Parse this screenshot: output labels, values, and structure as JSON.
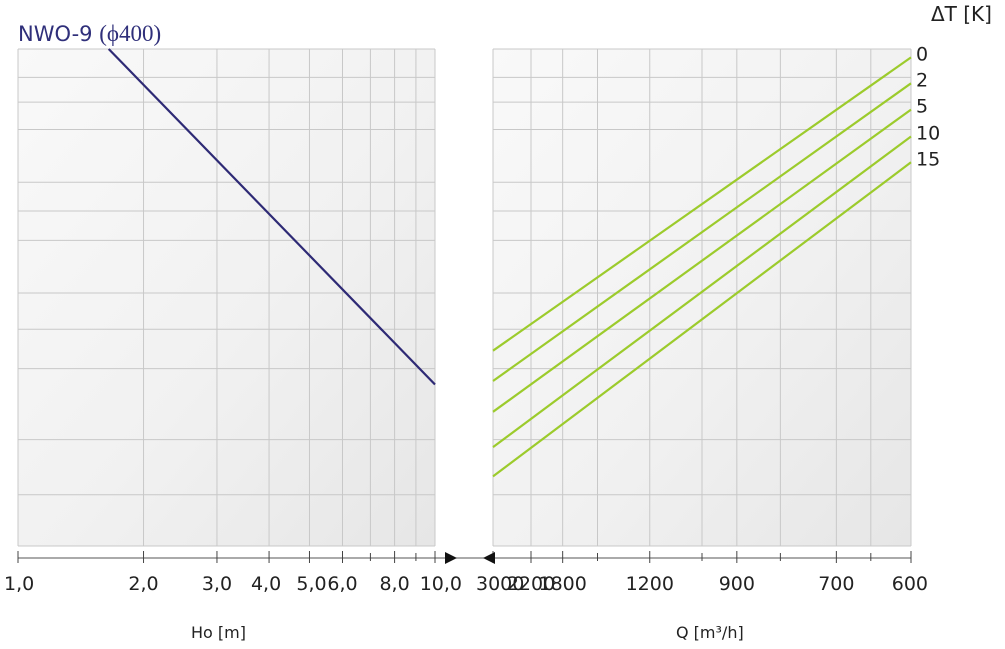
{
  "title_main": "NWO-9 ",
  "title_sub": "(ϕ400)",
  "chart_data": [
    {
      "type": "line",
      "xscale": "log",
      "xlabel": "Ho  [m]",
      "xlim": [
        1.0,
        10.0
      ],
      "ticks": [
        {
          "value": 1.0,
          "label": "1,0"
        },
        {
          "value": 2.0,
          "label": "2,0"
        },
        {
          "value": 3.0,
          "label": "3,0"
        },
        {
          "value": 4.0,
          "label": "4,0"
        },
        {
          "value": 5.0,
          "label": "5,0"
        },
        {
          "value": 6.0,
          "label": "6,0"
        },
        {
          "value": 8.0,
          "label": "8,0"
        },
        {
          "value": 10.0,
          "label": "10,0"
        }
      ],
      "minor_ticks": [
        7.0,
        9.0
      ],
      "grid": true,
      "series": [
        {
          "color": "#2e2a75",
          "x": [
            1.65,
            10.0
          ],
          "y_frac": [
            1.0,
            0.325
          ]
        }
      ]
    },
    {
      "type": "line",
      "xscale": "reciprocal",
      "xlabel": "Q [m³/h]",
      "xlim": [
        3000,
        600
      ],
      "ticks": [
        {
          "value": 3000,
          "label": "3000"
        },
        {
          "value": 2200,
          "label": "2200"
        },
        {
          "value": 1800,
          "label": "1800"
        },
        {
          "value": 1200,
          "label": "1200"
        },
        {
          "value": 900,
          "label": "900"
        },
        {
          "value": 700,
          "label": "700"
        },
        {
          "value": 600,
          "label": "600"
        }
      ],
      "minor_ticks": [
        1500,
        1000,
        800,
        650
      ],
      "grid": true,
      "legend_title": "ΔT [K]",
      "series": [
        {
          "name": "0",
          "color": "#9ccb2c",
          "x": [
            3000,
            600
          ],
          "y_frac": [
            0.393,
            0.983
          ]
        },
        {
          "name": "2",
          "color": "#9ccb2c",
          "x": [
            3000,
            600
          ],
          "y_frac": [
            0.332,
            0.931
          ]
        },
        {
          "name": "5",
          "color": "#9ccb2c",
          "x": [
            3000,
            600
          ],
          "y_frac": [
            0.27,
            0.878
          ]
        },
        {
          "name": "10",
          "color": "#9ccb2c",
          "x": [
            3000,
            600
          ],
          "y_frac": [
            0.199,
            0.824
          ]
        },
        {
          "name": "15",
          "color": "#9ccb2c",
          "x": [
            3000,
            600
          ],
          "y_frac": [
            0.14,
            0.772
          ]
        }
      ]
    }
  ],
  "y_gridlines_frac": [
    0.0,
    0.103,
    0.214,
    0.357,
    0.436,
    0.509,
    0.615,
    0.674,
    0.732,
    0.838,
    0.893,
    0.943,
    1.0
  ]
}
